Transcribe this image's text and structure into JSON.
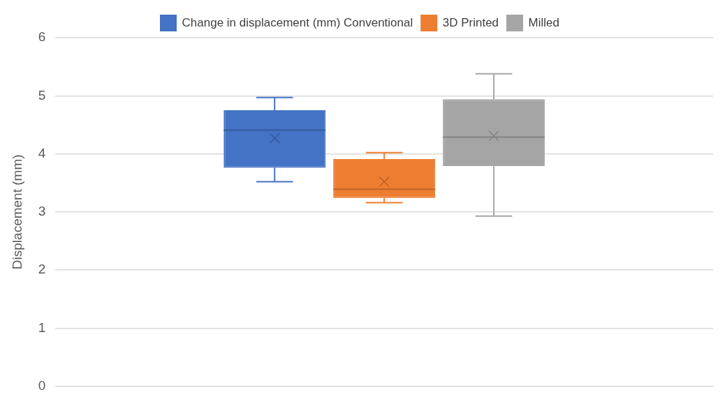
{
  "chart_data": {
    "type": "box",
    "ylabel": "Displacement (mm)",
    "categories": [
      null
    ],
    "series": [
      {
        "name": "Change in displacement (mm) Conventional",
        "color": "#4472c4",
        "boxes": [
          {
            "low": 3.52,
            "q1": 3.76,
            "median": 4.41,
            "q3": 4.75,
            "high": 4.97,
            "mean": 4.27
          }
        ]
      },
      {
        "name": "3D Printed",
        "color": "#ed7d31",
        "boxes": [
          {
            "low": 3.16,
            "q1": 3.24,
            "median": 3.39,
            "q3": 3.91,
            "high": 4.02,
            "mean": 3.52
          }
        ]
      },
      {
        "name": "Milled",
        "color": "#a5a5a5",
        "boxes": [
          {
            "low": 2.93,
            "q1": 3.79,
            "median": 4.29,
            "q3": 4.94,
            "high": 5.38,
            "mean": 4.31
          }
        ]
      }
    ],
    "ylim": [
      0,
      6
    ],
    "yticks": [
      0,
      1,
      2,
      3,
      4,
      5,
      6
    ],
    "grid": "y",
    "legend": "top",
    "marker": "cross"
  }
}
